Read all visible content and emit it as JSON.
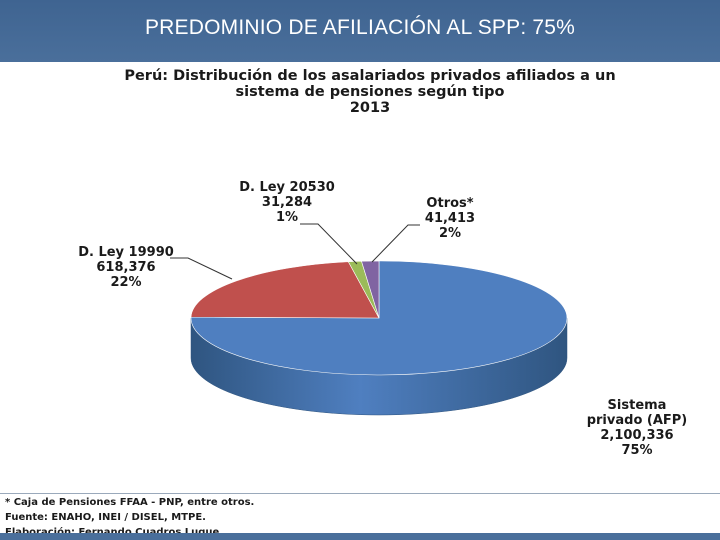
{
  "header": {
    "title": "PREDOMINIO DE AFILIACIÓN AL SPP: 75%"
  },
  "chart_data": {
    "type": "pie",
    "title_lines": [
      "Perú: Distribución  de los asalariados privados  afiliados a un",
      "sistema de pensiones  según tipo",
      "2013"
    ],
    "slices": [
      {
        "name": "Sistema privado (AFP)",
        "name_lines": [
          "Sistema",
          "privado (AFP)"
        ],
        "value_text": "2,100,336",
        "value": 2100336,
        "percent_text": "75%",
        "color": "#4f7fc0",
        "side_color": "#2f5580"
      },
      {
        "name": "D. Ley 19990",
        "name_lines": [
          "D. Ley 19990"
        ],
        "value_text": "618,376",
        "value": 618376,
        "percent_text": "22%",
        "color": "#c0504d",
        "side_color": "#8c3533"
      },
      {
        "name": "D. Ley 20530",
        "name_lines": [
          "D. Ley 20530"
        ],
        "value_text": "31,284",
        "value": 31284,
        "percent_text": "1%",
        "color": "#9bbb59",
        "side_color": "#6f883c"
      },
      {
        "name": "Otros*",
        "name_lines": [
          "Otros*"
        ],
        "value_text": "41,413",
        "value": 41413,
        "percent_text": "2%",
        "color": "#8064a2",
        "side_color": "#5a4675"
      }
    ]
  },
  "footer": {
    "note": "* Caja de Pensiones FFAA - PNP, entre otros.",
    "source": "Fuente: ENAHO, INEI / DISEL, MTPE.",
    "author": "Elaboración: Fernando Cuadros Luque."
  }
}
